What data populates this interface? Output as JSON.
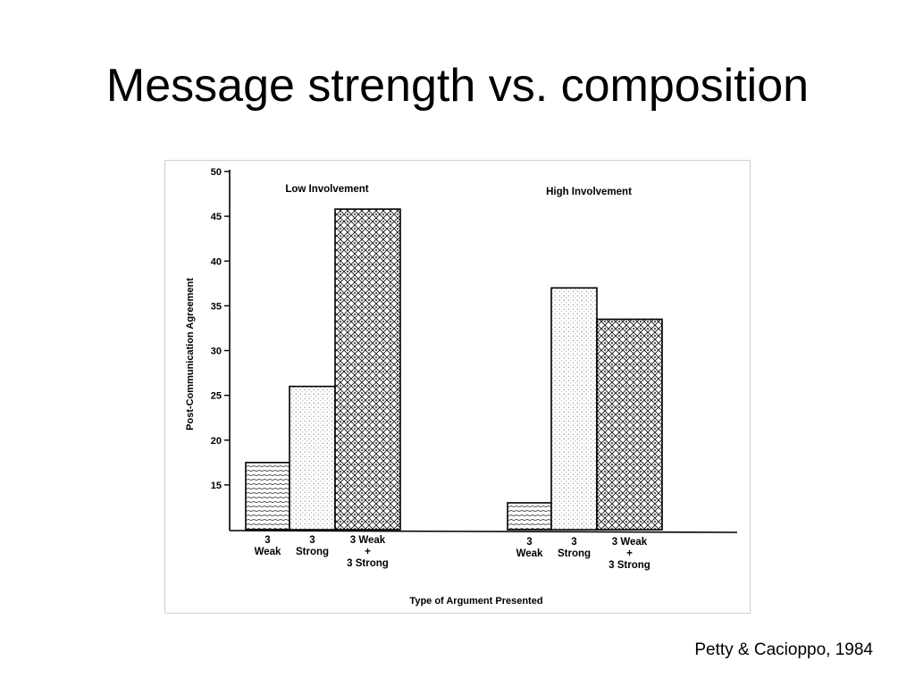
{
  "slide": {
    "title": "Message strength vs. composition",
    "citation": "Petty & Cacioppo, 1984"
  },
  "chart_data": {
    "type": "bar",
    "xlabel": "Type of Argument Presented",
    "ylabel": "Post-Communication Agreement",
    "ylim": [
      10,
      50
    ],
    "yticks": [
      15,
      20,
      25,
      30,
      35,
      40,
      45,
      50
    ],
    "grid": false,
    "categories": [
      [
        "3",
        "Weak"
      ],
      [
        "3",
        "Strong"
      ],
      [
        "3 Weak",
        "+",
        "3 Strong"
      ]
    ],
    "groups": [
      {
        "label": "Low Involvement",
        "values": [
          17.5,
          26,
          45.8
        ]
      },
      {
        "label": "High Involvement",
        "values": [
          13,
          37,
          33.5
        ]
      }
    ]
  }
}
